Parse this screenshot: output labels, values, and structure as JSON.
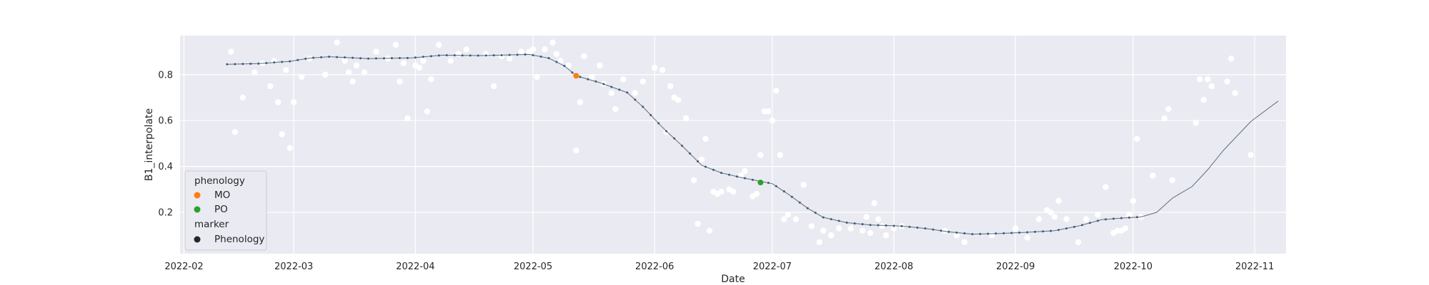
{
  "chart_data": {
    "type": "scatter",
    "title": "",
    "xlabel": "Date",
    "ylabel": "B1_interpolate",
    "xlim": [
      "2022-01-31",
      "2022-11-09"
    ],
    "ylim": [
      0.02,
      0.97
    ],
    "grid": true,
    "background": "#eaeaf2",
    "x_ticks": [
      "2022-02-01",
      "2022-03-01",
      "2022-04-01",
      "2022-05-01",
      "2022-06-01",
      "2022-07-01",
      "2022-08-01",
      "2022-09-01",
      "2022-10-01",
      "2022-11-01"
    ],
    "x_tick_labels": [
      "2022-02",
      "2022-03",
      "2022-04",
      "2022-05",
      "2022-06",
      "2022-07",
      "2022-08",
      "2022-09",
      "2022-10",
      "2022-11"
    ],
    "y_ticks": [
      0.2,
      0.4,
      0.6,
      0.8
    ],
    "y_tick_labels": [
      "0.2",
      "0.4",
      "0.6",
      "0.8"
    ],
    "series": [
      {
        "kind": "scatter",
        "color": "#ffffff",
        "points": [
          [
            "2022-02-13",
            0.9
          ],
          [
            "2022-02-14",
            0.55
          ],
          [
            "2022-02-16",
            0.7
          ],
          [
            "2022-02-19",
            0.81
          ],
          [
            "2022-02-21",
            0.85
          ],
          [
            "2022-02-23",
            0.75
          ],
          [
            "2022-02-24",
            0.86
          ],
          [
            "2022-02-25",
            0.68
          ],
          [
            "2022-02-26",
            0.54
          ],
          [
            "2022-02-27",
            0.82
          ],
          [
            "2022-02-28",
            0.48
          ],
          [
            "2022-03-01",
            0.68
          ],
          [
            "2022-03-03",
            0.79
          ],
          [
            "2022-03-05",
            0.87
          ],
          [
            "2022-03-09",
            0.8
          ],
          [
            "2022-03-12",
            0.94
          ],
          [
            "2022-03-14",
            0.86
          ],
          [
            "2022-03-15",
            0.81
          ],
          [
            "2022-03-16",
            0.77
          ],
          [
            "2022-03-17",
            0.84
          ],
          [
            "2022-03-19",
            0.81
          ],
          [
            "2022-03-22",
            0.9
          ],
          [
            "2022-03-25",
            0.87
          ],
          [
            "2022-03-27",
            0.93
          ],
          [
            "2022-03-28",
            0.77
          ],
          [
            "2022-03-29",
            0.85
          ],
          [
            "2022-03-30",
            0.61
          ],
          [
            "2022-04-01",
            0.84
          ],
          [
            "2022-04-02",
            0.83
          ],
          [
            "2022-04-03",
            0.86
          ],
          [
            "2022-04-04",
            0.64
          ],
          [
            "2022-04-05",
            0.78
          ],
          [
            "2022-04-07",
            0.93
          ],
          [
            "2022-04-10",
            0.86
          ],
          [
            "2022-04-12",
            0.89
          ],
          [
            "2022-04-14",
            0.91
          ],
          [
            "2022-04-19",
            0.89
          ],
          [
            "2022-04-21",
            0.75
          ],
          [
            "2022-04-23",
            0.88
          ],
          [
            "2022-04-25",
            0.87
          ],
          [
            "2022-04-28",
            0.9
          ],
          [
            "2022-04-30",
            0.9
          ],
          [
            "2022-05-01",
            0.91
          ],
          [
            "2022-05-02",
            0.79
          ],
          [
            "2022-05-04",
            0.91
          ],
          [
            "2022-05-06",
            0.94
          ],
          [
            "2022-05-07",
            0.89
          ],
          [
            "2022-05-08",
            0.86
          ],
          [
            "2022-05-10",
            0.84
          ],
          [
            "2022-05-12",
            0.47
          ],
          [
            "2022-05-13",
            0.68
          ],
          [
            "2022-05-14",
            0.88
          ],
          [
            "2022-05-16",
            0.79
          ],
          [
            "2022-05-18",
            0.84
          ],
          [
            "2022-05-19",
            0.76
          ],
          [
            "2022-05-21",
            0.72
          ],
          [
            "2022-05-22",
            0.65
          ],
          [
            "2022-05-24",
            0.78
          ],
          [
            "2022-05-27",
            0.72
          ],
          [
            "2022-05-29",
            0.77
          ],
          [
            "2022-06-01",
            0.83
          ],
          [
            "2022-06-03",
            0.82
          ],
          [
            "2022-06-04",
            0.55
          ],
          [
            "2022-06-05",
            0.75
          ],
          [
            "2022-06-06",
            0.7
          ],
          [
            "2022-06-07",
            0.69
          ],
          [
            "2022-06-09",
            0.61
          ],
          [
            "2022-06-11",
            0.34
          ],
          [
            "2022-06-12",
            0.15
          ],
          [
            "2022-06-13",
            0.43
          ],
          [
            "2022-06-14",
            0.52
          ],
          [
            "2022-06-15",
            0.12
          ],
          [
            "2022-06-16",
            0.29
          ],
          [
            "2022-06-17",
            0.28
          ],
          [
            "2022-06-18",
            0.29
          ],
          [
            "2022-06-20",
            0.3
          ],
          [
            "2022-06-21",
            0.29
          ],
          [
            "2022-06-23",
            0.36
          ],
          [
            "2022-06-24",
            0.38
          ],
          [
            "2022-06-26",
            0.27
          ],
          [
            "2022-06-27",
            0.28
          ],
          [
            "2022-06-28",
            0.45
          ],
          [
            "2022-06-29",
            0.64
          ],
          [
            "2022-06-30",
            0.64
          ],
          [
            "2022-07-01",
            0.6
          ],
          [
            "2022-07-02",
            0.73
          ],
          [
            "2022-07-03",
            0.45
          ],
          [
            "2022-07-04",
            0.17
          ],
          [
            "2022-07-05",
            0.19
          ],
          [
            "2022-07-07",
            0.17
          ],
          [
            "2022-07-09",
            0.32
          ],
          [
            "2022-07-11",
            0.14
          ],
          [
            "2022-07-13",
            0.07
          ],
          [
            "2022-07-14",
            0.12
          ],
          [
            "2022-07-16",
            0.1
          ],
          [
            "2022-07-18",
            0.13
          ],
          [
            "2022-07-21",
            0.13
          ],
          [
            "2022-07-24",
            0.12
          ],
          [
            "2022-07-25",
            0.18
          ],
          [
            "2022-07-26",
            0.11
          ],
          [
            "2022-07-27",
            0.24
          ],
          [
            "2022-07-28",
            0.17
          ],
          [
            "2022-07-29",
            0.14
          ],
          [
            "2022-07-30",
            0.1
          ],
          [
            "2022-08-01",
            0.13
          ],
          [
            "2022-08-03",
            0.14
          ],
          [
            "2022-08-14",
            0.12
          ],
          [
            "2022-08-17",
            0.1
          ],
          [
            "2022-08-19",
            0.07
          ],
          [
            "2022-08-26",
            0.1
          ],
          [
            "2022-09-01",
            0.13
          ],
          [
            "2022-09-04",
            0.09
          ],
          [
            "2022-09-07",
            0.17
          ],
          [
            "2022-09-09",
            0.21
          ],
          [
            "2022-09-10",
            0.2
          ],
          [
            "2022-09-11",
            0.18
          ],
          [
            "2022-09-12",
            0.25
          ],
          [
            "2022-09-14",
            0.17
          ],
          [
            "2022-09-17",
            0.07
          ],
          [
            "2022-09-19",
            0.17
          ],
          [
            "2022-09-22",
            0.19
          ],
          [
            "2022-09-24",
            0.31
          ],
          [
            "2022-09-26",
            0.11
          ],
          [
            "2022-09-27",
            0.12
          ],
          [
            "2022-09-28",
            0.12
          ],
          [
            "2022-09-29",
            0.13
          ],
          [
            "2022-09-30",
            0.19
          ],
          [
            "2022-10-01",
            0.25
          ],
          [
            "2022-10-02",
            0.52
          ],
          [
            "2022-10-03",
            0.18
          ],
          [
            "2022-10-06",
            0.36
          ],
          [
            "2022-10-09",
            0.61
          ],
          [
            "2022-10-10",
            0.65
          ],
          [
            "2022-10-11",
            0.34
          ],
          [
            "2022-10-17",
            0.59
          ],
          [
            "2022-10-18",
            0.78
          ],
          [
            "2022-10-19",
            0.69
          ],
          [
            "2022-10-20",
            0.78
          ],
          [
            "2022-10-21",
            0.75
          ],
          [
            "2022-10-25",
            0.77
          ],
          [
            "2022-10-26",
            0.87
          ],
          [
            "2022-10-27",
            0.72
          ],
          [
            "2022-10-31",
            0.45
          ]
        ]
      },
      {
        "kind": "line",
        "color": "#5a6e80",
        "points": [
          [
            "2022-02-12",
            0.845
          ],
          [
            "2022-02-20",
            0.848
          ],
          [
            "2022-02-28",
            0.858
          ],
          [
            "2022-03-05",
            0.872
          ],
          [
            "2022-03-10",
            0.878
          ],
          [
            "2022-03-20",
            0.87
          ],
          [
            "2022-03-31",
            0.873
          ],
          [
            "2022-04-08",
            0.885
          ],
          [
            "2022-04-18",
            0.883
          ],
          [
            "2022-04-30",
            0.888
          ],
          [
            "2022-05-05",
            0.872
          ],
          [
            "2022-05-09",
            0.838
          ],
          [
            "2022-05-12",
            0.795
          ],
          [
            "2022-05-18",
            0.765
          ],
          [
            "2022-05-25",
            0.722
          ],
          [
            "2022-05-29",
            0.66
          ],
          [
            "2022-06-03",
            0.57
          ],
          [
            "2022-06-08",
            0.49
          ],
          [
            "2022-06-13",
            0.405
          ],
          [
            "2022-06-18",
            0.372
          ],
          [
            "2022-06-23",
            0.352
          ],
          [
            "2022-06-28",
            0.335
          ],
          [
            "2022-07-01",
            0.325
          ],
          [
            "2022-07-05",
            0.28
          ],
          [
            "2022-07-10",
            0.218
          ],
          [
            "2022-07-14",
            0.178
          ],
          [
            "2022-07-20",
            0.155
          ],
          [
            "2022-07-26",
            0.145
          ],
          [
            "2022-08-03",
            0.14
          ],
          [
            "2022-08-09",
            0.13
          ],
          [
            "2022-08-15",
            0.115
          ],
          [
            "2022-08-21",
            0.105
          ],
          [
            "2022-08-28",
            0.108
          ],
          [
            "2022-09-04",
            0.113
          ],
          [
            "2022-09-11",
            0.12
          ],
          [
            "2022-09-17",
            0.14
          ],
          [
            "2022-09-23",
            0.168
          ],
          [
            "2022-09-28",
            0.175
          ],
          [
            "2022-10-03",
            0.18
          ],
          [
            "2022-10-07",
            0.2
          ],
          [
            "2022-10-11",
            0.262
          ],
          [
            "2022-10-16",
            0.312
          ],
          [
            "2022-10-20",
            0.385
          ],
          [
            "2022-10-24",
            0.47
          ],
          [
            "2022-10-31",
            0.596
          ],
          [
            "2022-11-07",
            0.685
          ]
        ]
      }
    ],
    "phenology_points": [
      {
        "label": "MO",
        "date": "2022-05-12",
        "value": 0.795,
        "color": "#ff7f0e"
      },
      {
        "label": "PO",
        "date": "2022-06-28",
        "value": 0.33,
        "color": "#2ca02c"
      }
    ],
    "legend": {
      "position": "lower-left",
      "title_phenology": "phenology",
      "title_marker": "marker",
      "entries": [
        {
          "label": "MO",
          "color": "#ff7f0e"
        },
        {
          "label": "PO",
          "color": "#2ca02c"
        }
      ],
      "marker_entry": {
        "label": "Phenology",
        "color": "#262626"
      }
    }
  }
}
